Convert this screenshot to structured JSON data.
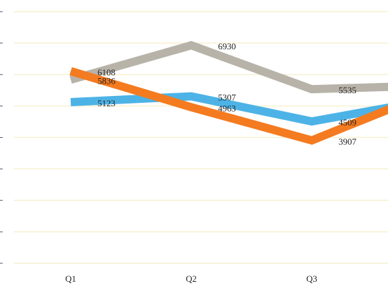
{
  "chart_data": {
    "type": "line",
    "categories": [
      "Q1",
      "Q2",
      "Q3",
      null
    ],
    "series": [
      {
        "name": null,
        "color": "#b8b3a9",
        "values": [
          5836,
          6930,
          5535,
          5650
        ]
      },
      {
        "name": null,
        "color": "#4db3e6",
        "values": [
          5123,
          5307,
          4509,
          5200
        ]
      },
      {
        "name": null,
        "color": "#f47b20",
        "values": [
          6108,
          4963,
          3907,
          5450
        ]
      }
    ],
    "ylim": [
      0,
      8000
    ],
    "yticks": [
      0,
      1000,
      2000,
      3000,
      4000,
      5000,
      6000,
      7000,
      8000
    ],
    "grid": true
  }
}
